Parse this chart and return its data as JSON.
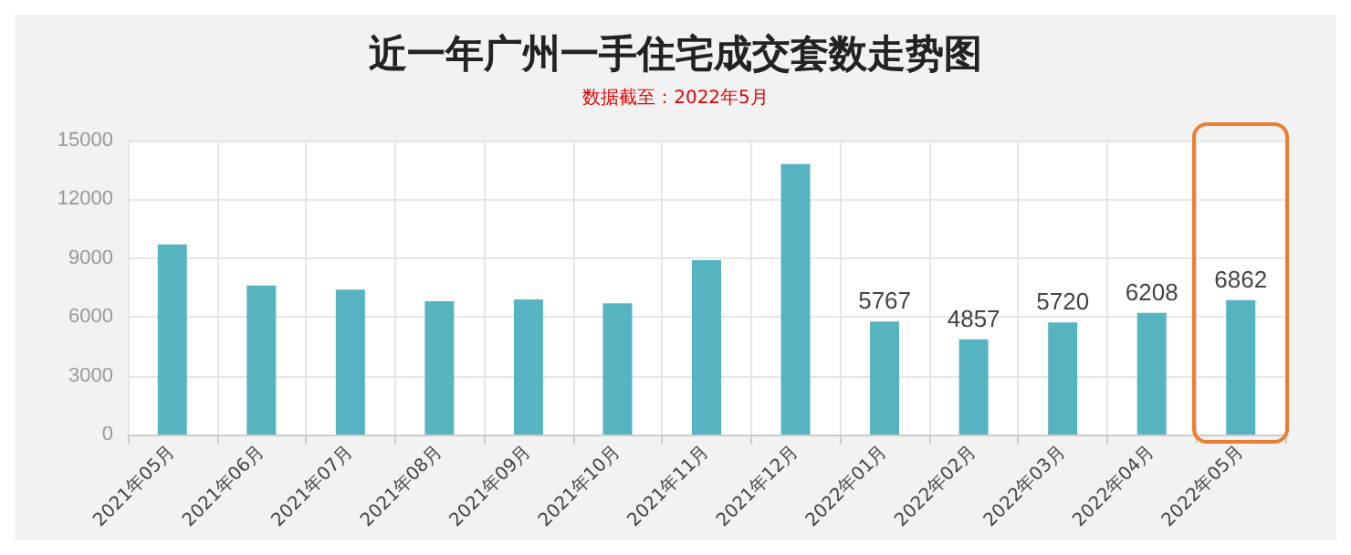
{
  "chart_data": {
    "type": "bar",
    "title": "近一年广州一手住宅成交套数走势图",
    "subtitle": "数据截至：2022年5月",
    "categories": [
      "2021年05月",
      "2021年06月",
      "2021年07月",
      "2021年08月",
      "2021年09月",
      "2021年10月",
      "2021年11月",
      "2021年12月",
      "2022年01月",
      "2022年02月",
      "2022年03月",
      "2022年04月",
      "2022年05月"
    ],
    "values": [
      9700,
      7600,
      7400,
      6800,
      6900,
      6700,
      8900,
      13800,
      5767,
      4857,
      5720,
      6208,
      6862
    ],
    "value_labels": [
      null,
      null,
      null,
      null,
      null,
      null,
      null,
      null,
      "5767",
      "4857",
      "5720",
      "6208",
      "6862"
    ],
    "color": "#56b4c0",
    "ylim": [
      0,
      15000
    ],
    "yticks": [
      0,
      3000,
      6000,
      9000,
      12000,
      15000
    ],
    "grid": true
  }
}
